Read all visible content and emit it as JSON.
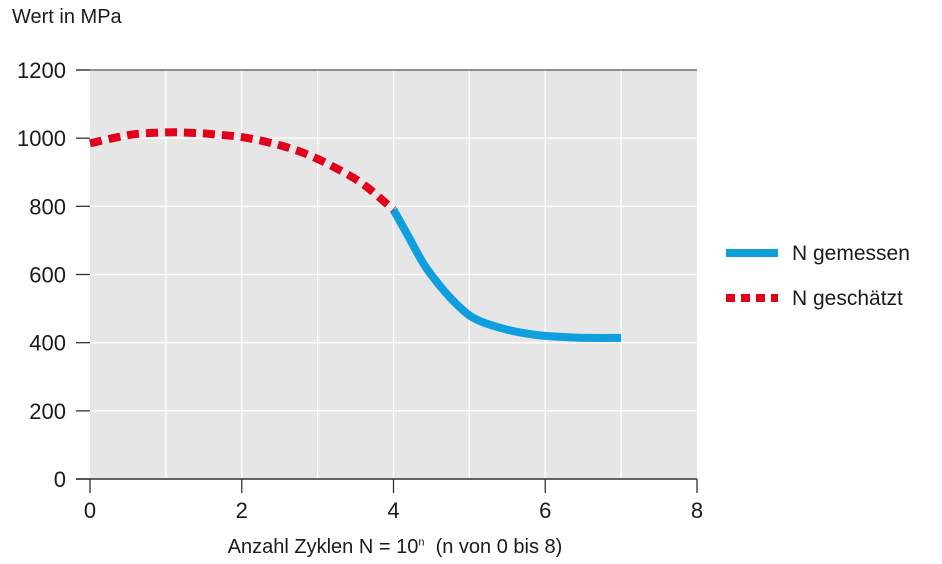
{
  "chart_data": {
    "type": "line",
    "ylabel": "Wert in MPa",
    "xlabel": "Anzahl Zyklen N = 10",
    "xlabel_exponent": "n",
    "xlabel_suffix": "(n von 0 bis 8)",
    "xlim": [
      0,
      8
    ],
    "ylim": [
      0,
      1200
    ],
    "xticks": [
      0,
      2,
      4,
      6,
      8
    ],
    "yticks": [
      0,
      200,
      400,
      600,
      800,
      1000,
      1200
    ],
    "grid": true,
    "legend_position": "right",
    "series": [
      {
        "name": "N gemessen",
        "color": "#0f9fdf",
        "style": "solid",
        "x": [
          4.0,
          4.2,
          4.4,
          4.6,
          4.8,
          5.0,
          5.2,
          5.5,
          5.8,
          6.0,
          6.3,
          6.6,
          7.0
        ],
        "y": [
          790,
          710,
          630,
          570,
          520,
          480,
          458,
          438,
          425,
          420,
          416,
          414,
          414
        ]
      },
      {
        "name": "N geschätzt",
        "color": "#e3001b",
        "style": "dashed",
        "x": [
          0.0,
          0.3,
          0.6,
          1.0,
          1.3,
          1.6,
          2.0,
          2.4,
          2.8,
          3.2,
          3.6,
          4.0
        ],
        "y": [
          985,
          1000,
          1012,
          1017,
          1016,
          1012,
          1003,
          985,
          958,
          917,
          865,
          790
        ]
      }
    ]
  }
}
